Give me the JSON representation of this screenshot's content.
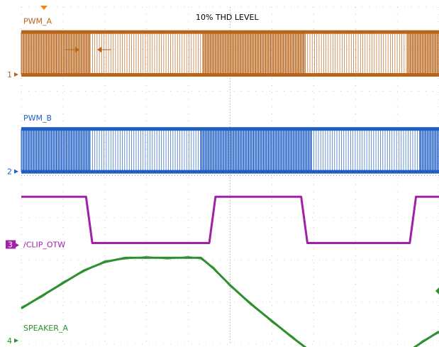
{
  "chart_data": {
    "type": "line",
    "title": "10% THD LEVEL",
    "xlabel": "",
    "ylabel": "",
    "grid": true,
    "grid_divisions": {
      "x": 10,
      "y": 8
    },
    "colors": {
      "PWM_A": "#b8641a",
      "PWM_B": "#1f5fc4",
      "CLIP_OTW": "#a020a8",
      "SPEAKER_A": "#2e8f2e",
      "grid": "#9a9a9a"
    },
    "channels": [
      {
        "id": "1",
        "name": "PWM_A",
        "marker": "1",
        "style": "pwm",
        "levels": {
          "high": 7.4,
          "low": 6.4
        },
        "dense_segments": [
          {
            "start": 0.0,
            "end": 1.65
          },
          {
            "start": 4.35,
            "end": 6.8
          },
          {
            "start": 9.25,
            "end": 10.0
          }
        ],
        "sparse_segments": [
          {
            "start": 1.65,
            "end": 4.35
          },
          {
            "start": 6.8,
            "end": 9.25
          }
        ]
      },
      {
        "id": "2",
        "name": "PWM_B",
        "marker": "2",
        "style": "pwm",
        "levels": {
          "high": 5.1,
          "low": 4.1
        },
        "dense_segments": [
          {
            "start": 0.0,
            "end": 1.65
          },
          {
            "start": 4.3,
            "end": 6.95
          },
          {
            "start": 9.55,
            "end": 10.0
          }
        ],
        "sparse_segments": [
          {
            "start": 1.65,
            "end": 4.3
          },
          {
            "start": 6.95,
            "end": 9.55
          }
        ]
      },
      {
        "id": "3",
        "name": "/CLIP_OTW",
        "marker": "3",
        "style": "digital",
        "x": [
          0.0,
          1.55,
          1.7,
          4.5,
          4.65,
          6.7,
          6.85,
          9.3,
          9.45,
          10.0
        ],
        "y": [
          3.5,
          3.5,
          2.4,
          2.4,
          3.5,
          3.5,
          2.4,
          2.4,
          3.5,
          3.5
        ]
      },
      {
        "id": "4",
        "name": "SPEAKER_A",
        "marker": "4",
        "style": "analog",
        "x": [
          0.0,
          0.5,
          1.0,
          1.5,
          2.0,
          2.5,
          3.0,
          3.5,
          4.0,
          4.3,
          4.6,
          5.0,
          5.5,
          6.0,
          6.5,
          6.9,
          7.2,
          7.5,
          8.0,
          8.5,
          9.0,
          9.3,
          9.6,
          10.0
        ],
        "y": [
          0.85,
          1.15,
          1.45,
          1.75,
          1.95,
          2.05,
          2.05,
          2.05,
          2.05,
          2.05,
          1.8,
          1.4,
          0.95,
          0.55,
          0.15,
          -0.15,
          -0.2,
          -0.2,
          -0.2,
          -0.2,
          -0.2,
          -0.15,
          0.05,
          0.3
        ]
      }
    ]
  }
}
